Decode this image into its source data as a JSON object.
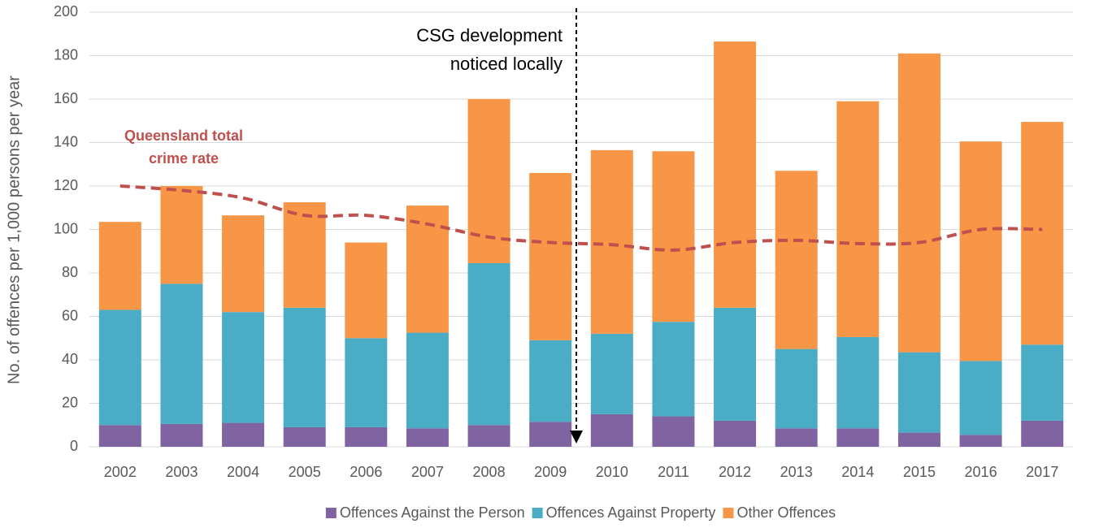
{
  "chart_data": {
    "type": "bar",
    "stacked": true,
    "y_label": "No. of offences per 1,000 persons per year",
    "categories": [
      "2002",
      "2003",
      "2004",
      "2005",
      "2006",
      "2007",
      "2008",
      "2009",
      "2010",
      "2011",
      "2012",
      "2013",
      "2014",
      "2015",
      "2016",
      "2017"
    ],
    "series": [
      {
        "name": "Offences Against the Person",
        "color": "#8064a2",
        "values": [
          10,
          10.5,
          11,
          9,
          9,
          8.5,
          10,
          11.5,
          15,
          14,
          12,
          8.5,
          8.5,
          6.5,
          5.5,
          12
        ]
      },
      {
        "name": "Offences Against Property",
        "color": "#4bacc6",
        "values": [
          53,
          64.5,
          51,
          55,
          41,
          44,
          74.5,
          37.5,
          37,
          43.5,
          52,
          36.5,
          42,
          37,
          34,
          35
        ]
      },
      {
        "name": "Other Offences",
        "color": "#f79646",
        "values": [
          40.5,
          45,
          44.5,
          48.5,
          44,
          58.5,
          75.5,
          77,
          84.5,
          78.5,
          122.5,
          82,
          108.5,
          137.5,
          101,
          102.5
        ]
      }
    ],
    "line": {
      "color": "#c0504d",
      "dashed": true,
      "values": [
        120,
        118,
        114.5,
        106.5,
        106.5,
        102.5,
        96.5,
        94,
        93,
        90.5,
        94,
        95,
        93.5,
        94,
        100,
        100
      ]
    },
    "annotations": [
      {
        "lines": [
          "Queensland total crime rate"
        ],
        "text_lines": [
          "Queensland total",
          "crime rate"
        ],
        "color": "#c0504d"
      },
      {
        "text_lines": [
          "CSG development",
          "noticed locally"
        ],
        "color": "#000000"
      }
    ],
    "ylim": [
      0,
      200
    ],
    "yticks": [
      0,
      20,
      40,
      60,
      80,
      100,
      120,
      140,
      160,
      180,
      200
    ],
    "grid": true,
    "legend": "bottom"
  }
}
